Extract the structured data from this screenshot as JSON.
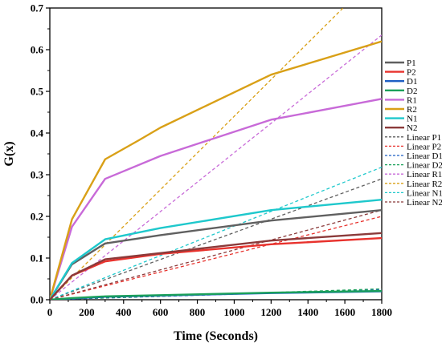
{
  "chart_data": {
    "type": "line",
    "title": "",
    "xlabel": "Time (Seconds)",
    "ylabel": "G(x)",
    "xlim": [
      0,
      1800
    ],
    "ylim": [
      0,
      0.7
    ],
    "xticks": [
      0,
      200,
      400,
      600,
      800,
      1000,
      1200,
      1400,
      1600,
      1800
    ],
    "yticks": [
      0.0,
      0.1,
      0.2,
      0.3,
      0.4,
      0.5,
      0.6,
      0.7
    ],
    "xtick_labels": [
      "0",
      "200",
      "400",
      "600",
      "800",
      "1000",
      "1200",
      "1400",
      "1600",
      "1800"
    ],
    "ytick_labels": [
      "0.0",
      "0.1",
      "0.2",
      "0.3",
      "0.4",
      "0.5",
      "0.6",
      "0.7"
    ],
    "grid": false,
    "legend_position": "right",
    "series": [
      {
        "name": "P1",
        "color": "#606060",
        "style": "solid",
        "x": [
          0,
          120,
          300,
          600,
          1200,
          1800
        ],
        "y": [
          0,
          0.085,
          0.135,
          0.155,
          0.19,
          0.215
        ]
      },
      {
        "name": "P2",
        "color": "#e8322d",
        "style": "solid",
        "x": [
          0,
          120,
          300,
          600,
          1200,
          1800
        ],
        "y": [
          0,
          0.058,
          0.092,
          0.11,
          0.133,
          0.148
        ]
      },
      {
        "name": "D1",
        "color": "#1f5fc4",
        "style": "solid",
        "x": [
          0,
          120,
          300,
          600,
          1200,
          1800
        ],
        "y": [
          0,
          0.003,
          0.007,
          0.01,
          0.016,
          0.02
        ]
      },
      {
        "name": "D2",
        "color": "#1aa05a",
        "style": "solid",
        "x": [
          0,
          120,
          300,
          600,
          1200,
          1800
        ],
        "y": [
          0,
          0.004,
          0.008,
          0.011,
          0.017,
          0.021
        ]
      },
      {
        "name": "R1",
        "color": "#c86ad8",
        "style": "solid",
        "x": [
          0,
          120,
          300,
          600,
          1200,
          1800
        ],
        "y": [
          0,
          0.175,
          0.29,
          0.345,
          0.432,
          0.482
        ]
      },
      {
        "name": "R2",
        "color": "#d9a017",
        "style": "solid",
        "x": [
          0,
          120,
          300,
          480,
          600,
          1200,
          1800
        ],
        "y": [
          0,
          0.193,
          0.337,
          0.382,
          0.413,
          0.54,
          0.62
        ]
      },
      {
        "name": "N1",
        "color": "#1ec8cc",
        "style": "solid",
        "x": [
          0,
          120,
          300,
          600,
          1200,
          1800
        ],
        "y": [
          0,
          0.088,
          0.145,
          0.172,
          0.215,
          0.24
        ]
      },
      {
        "name": "N2",
        "color": "#8b3a3a",
        "style": "solid",
        "x": [
          0,
          120,
          300,
          600,
          1200,
          1800
        ],
        "y": [
          0,
          0.058,
          0.097,
          0.112,
          0.142,
          0.16
        ]
      },
      {
        "name": "Linear P1",
        "color": "#606060",
        "style": "dashed",
        "x": [
          0,
          1800
        ],
        "y": [
          0,
          0.29
        ]
      },
      {
        "name": "Linear P2",
        "color": "#e8322d",
        "style": "dashed",
        "x": [
          0,
          1800
        ],
        "y": [
          0,
          0.2
        ]
      },
      {
        "name": "Linear D1",
        "color": "#1f5fc4",
        "style": "dashed",
        "x": [
          0,
          1800
        ],
        "y": [
          0,
          0.024
        ]
      },
      {
        "name": "Linear D2",
        "color": "#1aa05a",
        "style": "dashed",
        "x": [
          0,
          1800
        ],
        "y": [
          0,
          0.026
        ]
      },
      {
        "name": "Linear R1",
        "color": "#c86ad8",
        "style": "dashed",
        "x": [
          0,
          1800
        ],
        "y": [
          0,
          0.635
        ]
      },
      {
        "name": "Linear R2",
        "color": "#d9a017",
        "style": "dashed",
        "x": [
          0,
          1590
        ],
        "y": [
          0,
          0.7
        ]
      },
      {
        "name": "Linear N1",
        "color": "#1ec8cc",
        "style": "dashed",
        "x": [
          0,
          1800
        ],
        "y": [
          0,
          0.318
        ]
      },
      {
        "name": "Linear N2",
        "color": "#8b3a3a",
        "style": "dashed",
        "x": [
          0,
          1800
        ],
        "y": [
          0,
          0.215
        ]
      }
    ]
  }
}
